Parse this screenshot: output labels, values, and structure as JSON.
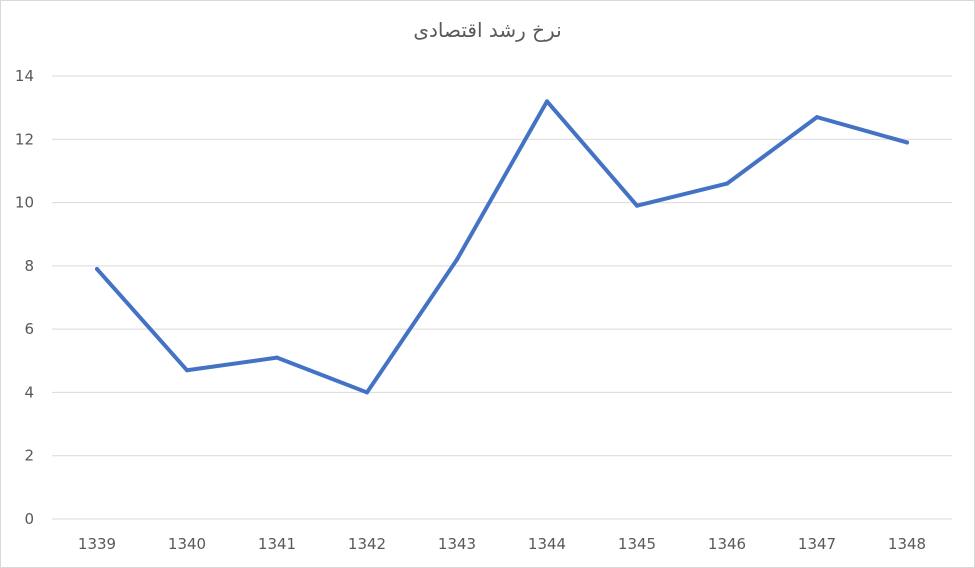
{
  "chart_data": {
    "type": "line",
    "title": "نرخ رشد اقتصادی",
    "xlabel": "",
    "ylabel": "",
    "categories": [
      "1339",
      "1340",
      "1341",
      "1342",
      "1343",
      "1344",
      "1345",
      "1346",
      "1347",
      "1348"
    ],
    "series": [
      {
        "values": [
          7.9,
          4.7,
          5.1,
          4.0,
          8.2,
          13.2,
          9.9,
          10.6,
          12.7,
          11.9
        ],
        "color": "#4472c4"
      }
    ],
    "ylim": [
      0,
      14
    ],
    "yticks": [
      0,
      2,
      4,
      6,
      8,
      10,
      12,
      14
    ],
    "grid": true,
    "legend": "none"
  }
}
